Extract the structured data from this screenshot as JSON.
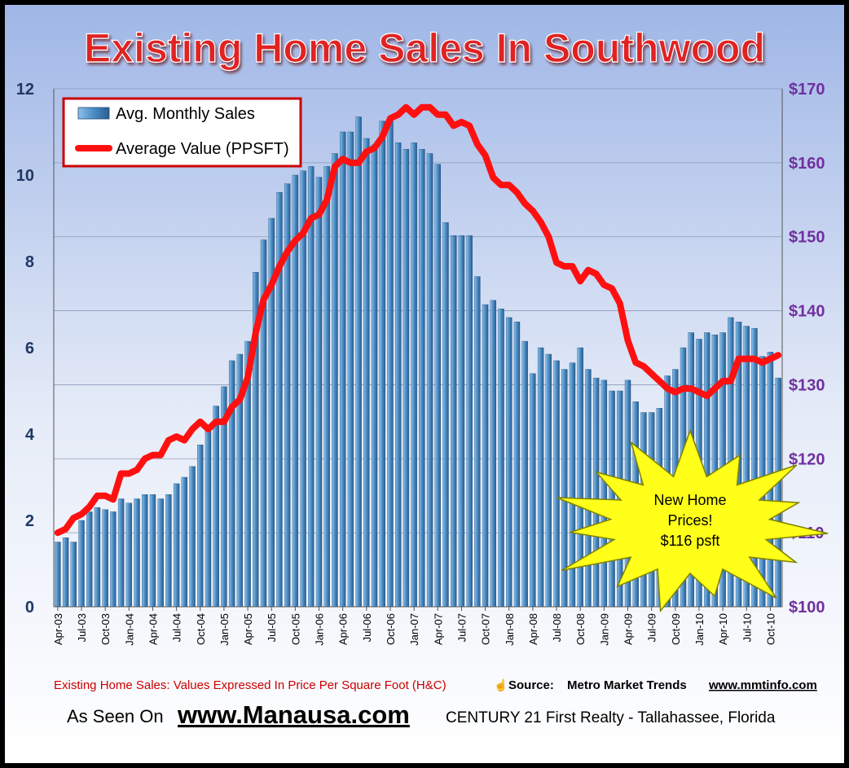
{
  "title": "Existing Home Sales In Southwood",
  "caption": {
    "subtitle": "Existing Home Sales: Values Expressed In Price Per Square Foot (H&C)",
    "source_label": "Source:",
    "source_name": "Metro Market Trends",
    "source_url": "www.mmtinfo.com"
  },
  "footer": {
    "prefix": "As Seen On",
    "site": "www.Manausa.com",
    "brand": "CENTURY 21 First Realty - Tallahassee, Florida"
  },
  "callout": {
    "lines": [
      "New Home",
      "Prices!",
      "$116 psft"
    ]
  },
  "colors": {
    "bar": "#3d7fb8",
    "bar_highlight": "#8dc0e8",
    "line": "#ff1010",
    "title": "#e02020",
    "left_axis": "#1f3864",
    "right_axis": "#7030a0",
    "caption": "#cc0000",
    "starburst": "#ffff1a"
  },
  "chart_data": {
    "type": "bar",
    "x": [
      "Apr-03",
      "May-03",
      "Jun-03",
      "Jul-03",
      "Aug-03",
      "Sep-03",
      "Oct-03",
      "Nov-03",
      "Dec-03",
      "Jan-04",
      "Feb-04",
      "Mar-04",
      "Apr-04",
      "May-04",
      "Jun-04",
      "Jul-04",
      "Aug-04",
      "Sep-04",
      "Oct-04",
      "Nov-04",
      "Dec-04",
      "Jan-05",
      "Feb-05",
      "Mar-05",
      "Apr-05",
      "May-05",
      "Jun-05",
      "Jul-05",
      "Aug-05",
      "Sep-05",
      "Oct-05",
      "Nov-05",
      "Dec-05",
      "Jan-06",
      "Feb-06",
      "Mar-06",
      "Apr-06",
      "May-06",
      "Jun-06",
      "Jul-06",
      "Aug-06",
      "Sep-06",
      "Oct-06",
      "Nov-06",
      "Dec-06",
      "Jan-07",
      "Feb-07",
      "Mar-07",
      "Apr-07",
      "May-07",
      "Jun-07",
      "Jul-07",
      "Aug-07",
      "Sep-07",
      "Oct-07",
      "Nov-07",
      "Dec-07",
      "Jan-08",
      "Feb-08",
      "Mar-08",
      "Apr-08",
      "May-08",
      "Jun-08",
      "Jul-08",
      "Aug-08",
      "Sep-08",
      "Oct-08",
      "Nov-08",
      "Dec-08",
      "Jan-09",
      "Feb-09",
      "Mar-09",
      "Apr-09",
      "May-09",
      "Jun-09",
      "Jul-09",
      "Aug-09",
      "Sep-09",
      "Oct-09",
      "Nov-09",
      "Dec-09",
      "Jan-10",
      "Feb-10",
      "Mar-10",
      "Apr-10",
      "May-10",
      "Jun-10",
      "Jul-10",
      "Aug-10",
      "Sep-10",
      "Oct-10",
      "Nov-10"
    ],
    "tick_labels": [
      "Apr-03",
      "Jul-03",
      "Oct-03",
      "Jan-04",
      "Apr-04",
      "Jul-04",
      "Oct-04",
      "Jan-05",
      "Apr-05",
      "Jul-05",
      "Oct-05",
      "Jan-06",
      "Apr-06",
      "Jul-06",
      "Oct-06",
      "Jan-07",
      "Apr-07",
      "Jul-07",
      "Oct-07",
      "Jan-08",
      "Apr-08",
      "Jul-08",
      "Oct-08",
      "Jan-09",
      "Apr-09",
      "Jul-09",
      "Oct-09",
      "Jan-10",
      "Apr-10",
      "Jul-10",
      "Oct-10"
    ],
    "series": [
      {
        "name": "Avg. Monthly Sales",
        "type": "bar",
        "axis": "left",
        "values": [
          1.5,
          1.6,
          1.5,
          2.0,
          2.2,
          2.3,
          2.25,
          2.2,
          2.5,
          2.4,
          2.5,
          2.6,
          2.6,
          2.5,
          2.6,
          2.85,
          3.0,
          3.25,
          3.75,
          4.2,
          4.65,
          5.1,
          5.7,
          5.85,
          6.15,
          7.75,
          8.5,
          9.0,
          9.6,
          9.8,
          10.0,
          10.1,
          10.2,
          9.95,
          10.2,
          10.5,
          11.0,
          11.0,
          11.35,
          10.85,
          10.7,
          11.25,
          11.25,
          10.75,
          10.6,
          10.75,
          10.6,
          10.5,
          10.25,
          8.9,
          8.6,
          8.6,
          8.6,
          7.65,
          7.0,
          7.1,
          6.9,
          6.7,
          6.6,
          6.15,
          5.4,
          6.0,
          5.85,
          5.7,
          5.5,
          5.65,
          6.0,
          5.5,
          5.3,
          5.25,
          5.0,
          5.0,
          5.25,
          4.75,
          4.5,
          4.5,
          4.6,
          5.35,
          5.5,
          6.0,
          6.35,
          6.2,
          6.35,
          6.3,
          6.35,
          6.7,
          6.6,
          6.5,
          6.45,
          5.8,
          5.9,
          5.3
        ]
      },
      {
        "name": "Average Value (PPSFT)",
        "type": "line",
        "axis": "right",
        "values": [
          110.0,
          110.5,
          112.0,
          112.5,
          113.5,
          115.0,
          115.0,
          114.5,
          118.0,
          118.0,
          118.5,
          120.0,
          120.5,
          120.5,
          122.5,
          123.0,
          122.5,
          124.0,
          125.0,
          124.0,
          125.0,
          125.0,
          127.0,
          128.0,
          131.0,
          137.0,
          141.5,
          143.5,
          146.0,
          148.0,
          149.5,
          150.5,
          152.5,
          153.0,
          155.0,
          159.5,
          160.5,
          160.0,
          160.0,
          161.5,
          162.0,
          163.5,
          166.0,
          166.5,
          167.5,
          166.5,
          167.5,
          167.5,
          166.5,
          166.5,
          165.0,
          165.5,
          165.0,
          162.5,
          161.0,
          158.0,
          157.0,
          157.0,
          156.0,
          154.5,
          153.5,
          152.0,
          150.0,
          146.5,
          146.0,
          146.0,
          144.0,
          145.5,
          145.0,
          143.5,
          143.0,
          141.0,
          136.0,
          133.0,
          132.5,
          131.5,
          130.5,
          129.5,
          129.0,
          129.5,
          129.5,
          129.0,
          128.5,
          129.5,
          130.5,
          130.5,
          133.5,
          133.5,
          133.5,
          133.0,
          133.5,
          134.0
        ]
      }
    ],
    "y_left": {
      "min": 0,
      "max": 12,
      "ticks": [
        0,
        2,
        4,
        6,
        8,
        10,
        12
      ]
    },
    "y_right": {
      "min": 100,
      "max": 170,
      "ticks": [
        "$100",
        "$110",
        "$120",
        "$130",
        "$140",
        "$150",
        "$160",
        "$170"
      ]
    },
    "legend_placement": "top-left",
    "grid": true
  }
}
